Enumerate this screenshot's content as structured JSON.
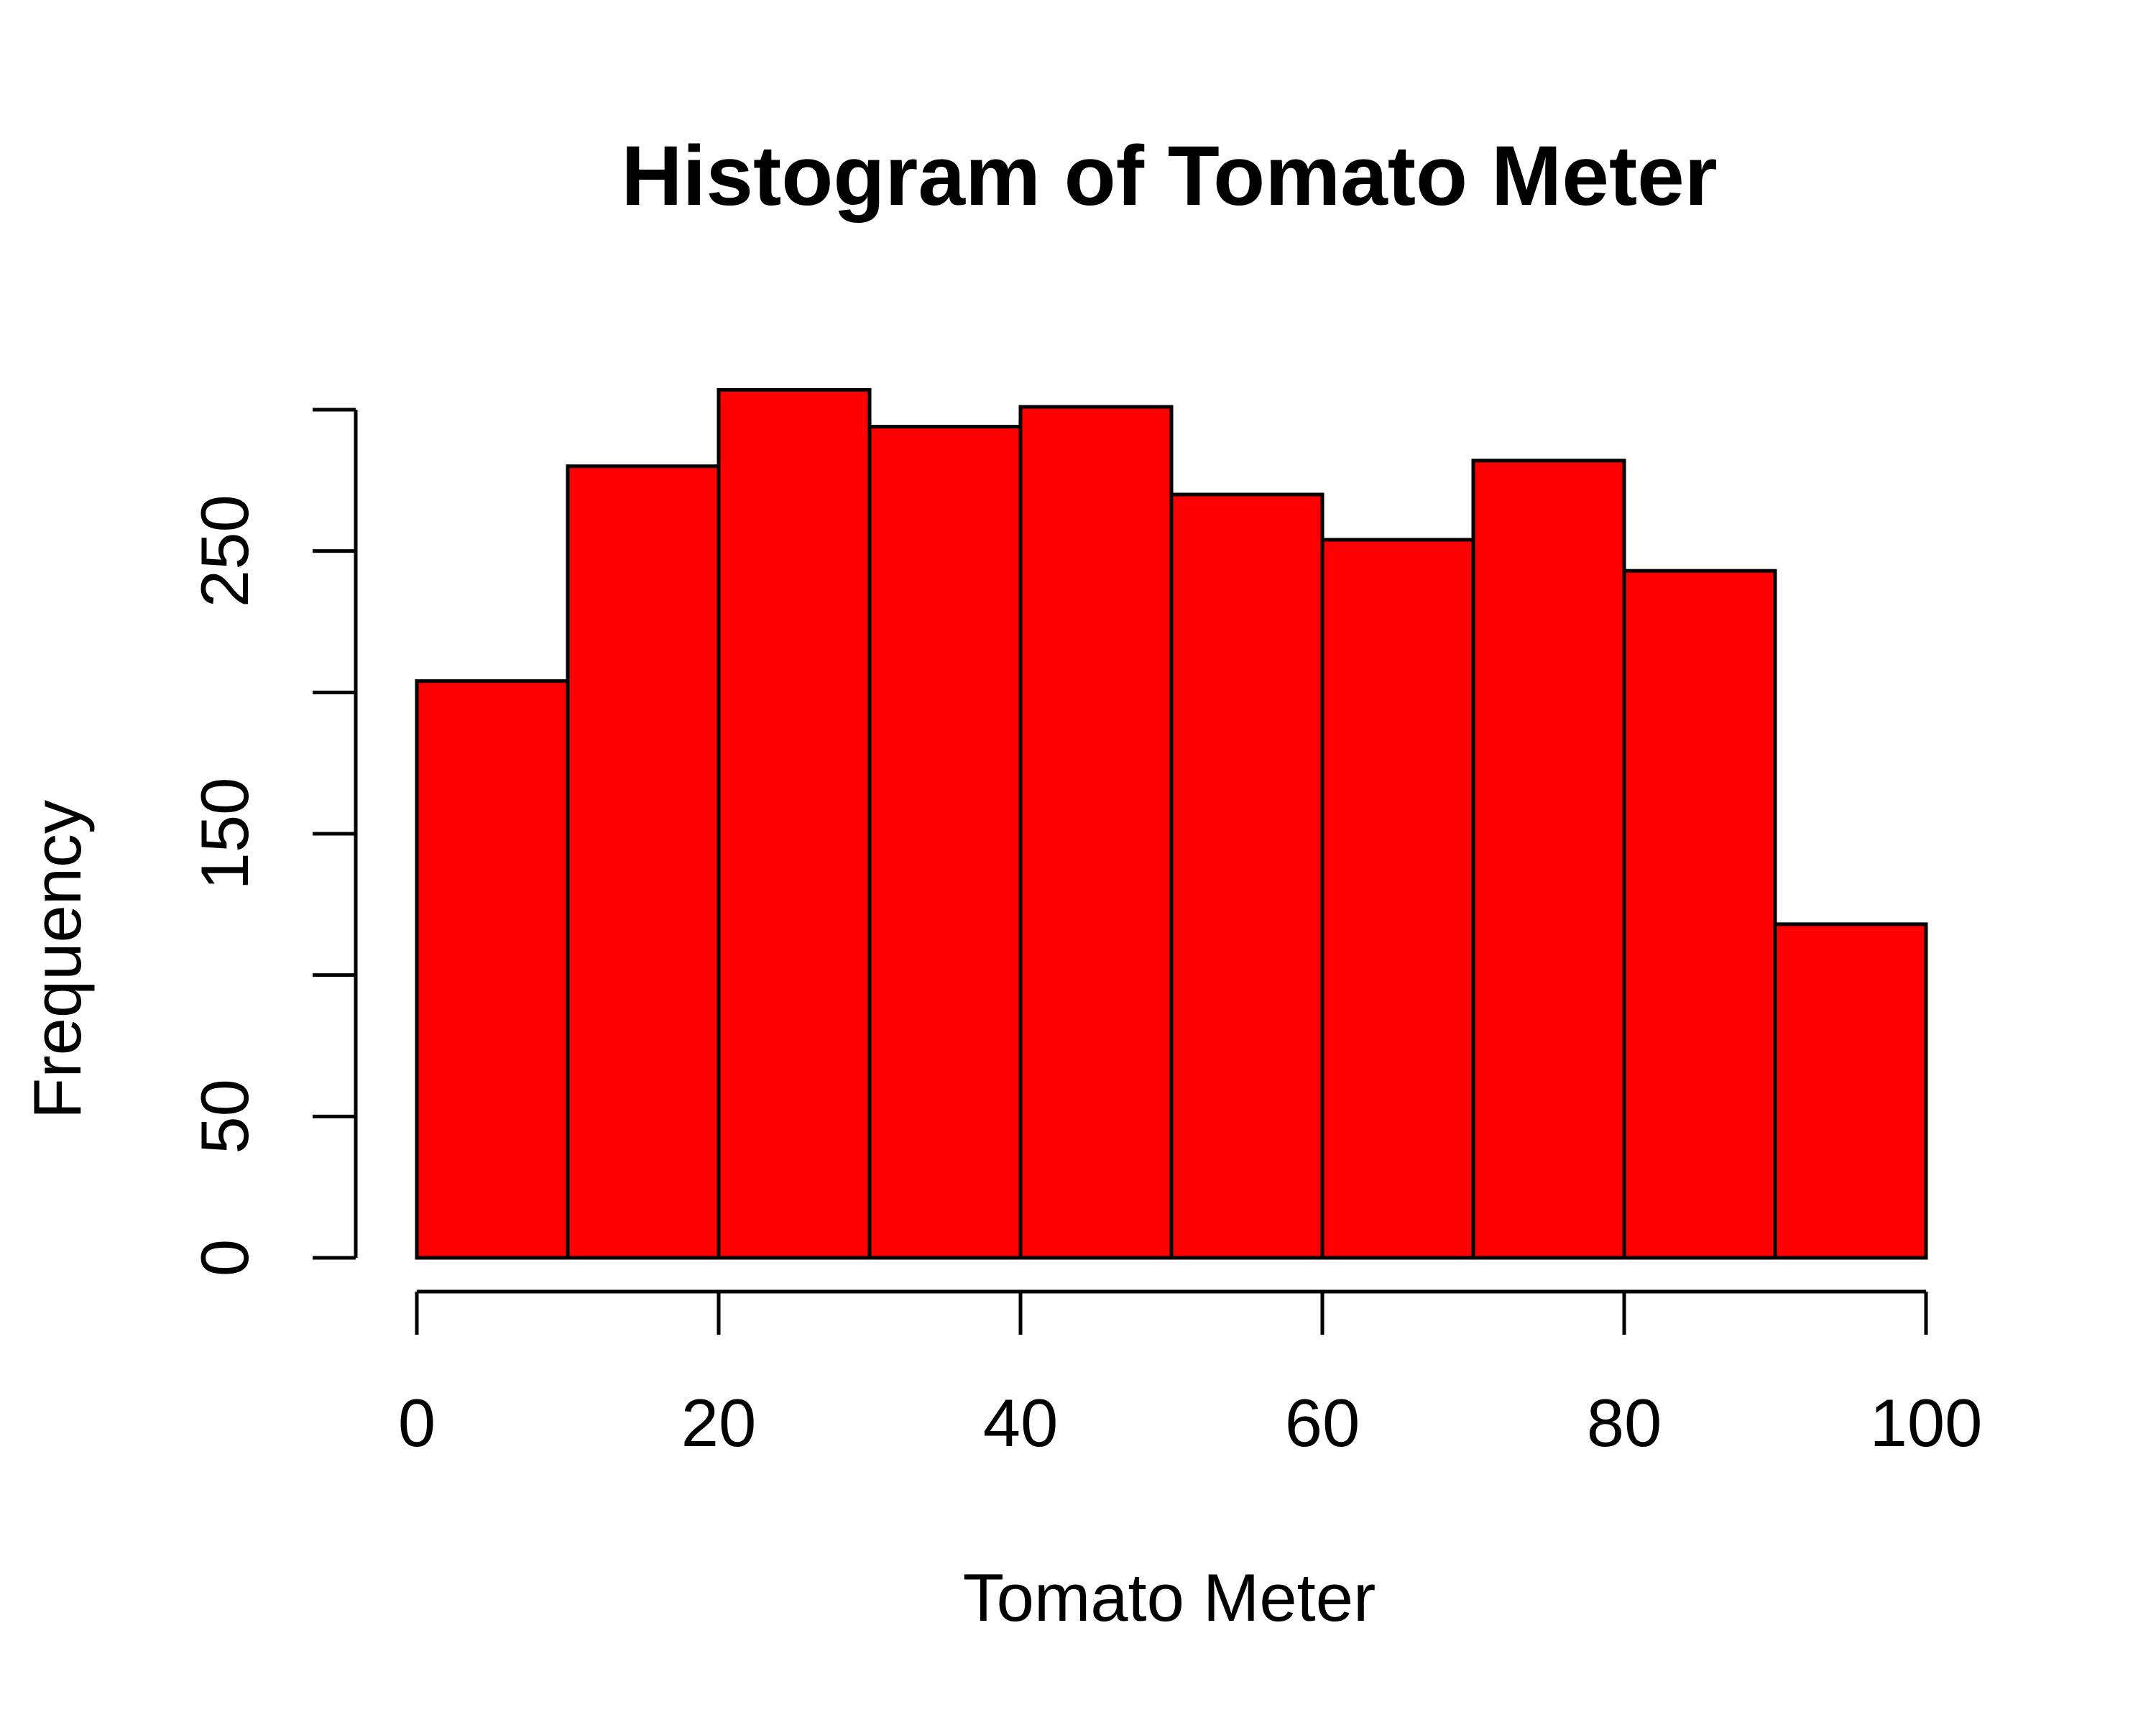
{
  "chart_data": {
    "type": "bar",
    "title": "Histogram of Tomato Meter",
    "xlabel": "Tomato Meter",
    "ylabel": "Frequency",
    "bin_edges": [
      0,
      10,
      20,
      30,
      40,
      50,
      60,
      70,
      80,
      90,
      100
    ],
    "values": [
      204,
      280,
      307,
      294,
      301,
      270,
      254,
      282,
      243,
      118
    ],
    "xlim": [
      0,
      100
    ],
    "ylim": [
      0,
      300
    ],
    "x_ticks": [
      0,
      20,
      40,
      60,
      80,
      100
    ],
    "y_ticks": [
      0,
      50,
      100,
      150,
      200,
      250,
      300
    ],
    "y_tick_labels": [
      "0",
      "50",
      "",
      "150",
      "",
      "250",
      ""
    ],
    "x_tick_labels": [
      "0",
      "20",
      "40",
      "60",
      "80",
      "100"
    ],
    "bar_color": "#FF0000",
    "bar_border_color": "#000000",
    "grid": false,
    "legend": "none"
  }
}
